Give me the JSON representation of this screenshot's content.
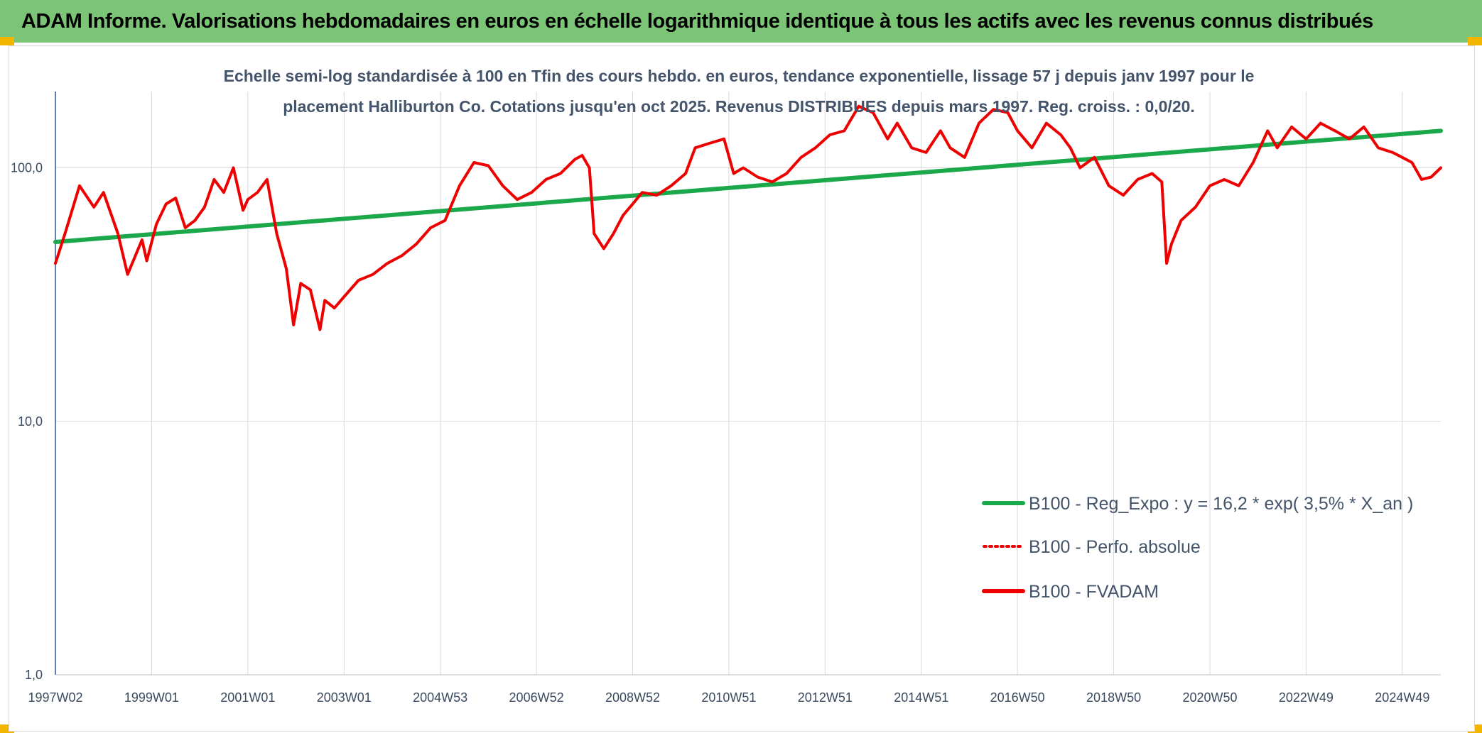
{
  "header": {
    "title": "ADAM Informe. Valorisations hebdomadaires en euros en échelle logarithmique identique à tous les actifs avec les revenus connus distribués"
  },
  "colors": {
    "header_bg": "#7cc576",
    "regression": "#1aa84b",
    "series": "#ee0000",
    "grid": "#d9d9d9",
    "text": "#44546a"
  },
  "chart_data": {
    "type": "line",
    "title_lines": [
      "Echelle semi-log standardisée à 100 en Tfin des cours hebdo. en euros, tendance exponentielle, lissage 57 j depuis janv 1997 pour le",
      "placement Halliburton Co. Cotations jusqu'en oct 2025. Revenus DISTRIBUES depuis mars 1997. Reg. croiss. : 0,0/20."
    ],
    "y_scale": "log",
    "ylim": [
      1,
      200
    ],
    "y_ticks": [
      {
        "value": 1,
        "label": "1,0"
      },
      {
        "value": 10,
        "label": "10,0"
      },
      {
        "value": 100,
        "label": "100,0"
      }
    ],
    "x_range": [
      1997.0,
      2025.8
    ],
    "x_ticks": [
      {
        "value": 1997.0,
        "label": "1997W02"
      },
      {
        "value": 1999.0,
        "label": "1999W01"
      },
      {
        "value": 2001.0,
        "label": "2001W01"
      },
      {
        "value": 2003.0,
        "label": "2003W01"
      },
      {
        "value": 2005.0,
        "label": "2004W53"
      },
      {
        "value": 2007.0,
        "label": "2006W52"
      },
      {
        "value": 2009.0,
        "label": "2008W52"
      },
      {
        "value": 2011.0,
        "label": "2010W51"
      },
      {
        "value": 2013.0,
        "label": "2012W51"
      },
      {
        "value": 2015.0,
        "label": "2014W51"
      },
      {
        "value": 2017.0,
        "label": "2016W50"
      },
      {
        "value": 2019.0,
        "label": "2018W50"
      },
      {
        "value": 2021.0,
        "label": "2020W50"
      },
      {
        "value": 2023.0,
        "label": "2022W49"
      },
      {
        "value": 2025.0,
        "label": "2024W49"
      }
    ],
    "grid": true,
    "legend_position": "bottom-right",
    "series": [
      {
        "name": "B100 - Reg_Expo : y = 16,2 * exp( 3,5% *  X_an )",
        "style": "solid-thick",
        "color": "#1aa84b",
        "x": [
          1997.0,
          2025.8
        ],
        "y": [
          51,
          140
        ]
      },
      {
        "name": "B100 - Perfo. absolue",
        "style": "dotted",
        "color": "#ee0000",
        "x": [],
        "y": []
      },
      {
        "name": "B100 - FVADAM",
        "style": "solid",
        "color": "#ee0000",
        "x": [
          1997.0,
          1997.2,
          1997.5,
          1997.8,
          1998.0,
          1998.3,
          1998.5,
          1998.8,
          1998.9,
          1999.1,
          1999.3,
          1999.5,
          1999.7,
          1999.9,
          2000.1,
          2000.3,
          2000.5,
          2000.7,
          2000.9,
          2001.0,
          2001.2,
          2001.4,
          2001.6,
          2001.8,
          2001.95,
          2002.1,
          2002.3,
          2002.5,
          2002.6,
          2002.8,
          2003.0,
          2003.3,
          2003.6,
          2003.9,
          2004.2,
          2004.5,
          2004.8,
          2005.1,
          2005.4,
          2005.7,
          2006.0,
          2006.3,
          2006.6,
          2006.9,
          2007.2,
          2007.5,
          2007.8,
          2007.95,
          2008.1,
          2008.2,
          2008.4,
          2008.6,
          2008.8,
          2009.0,
          2009.2,
          2009.5,
          2009.8,
          2010.1,
          2010.3,
          2010.6,
          2010.9,
          2011.1,
          2011.3,
          2011.6,
          2011.9,
          2012.2,
          2012.5,
          2012.8,
          2013.1,
          2013.4,
          2013.7,
          2014.0,
          2014.3,
          2014.5,
          2014.8,
          2015.1,
          2015.4,
          2015.6,
          2015.9,
          2016.2,
          2016.5,
          2016.8,
          2017.0,
          2017.3,
          2017.6,
          2017.9,
          2018.1,
          2018.3,
          2018.6,
          2018.9,
          2019.2,
          2019.5,
          2019.8,
          2020.0,
          2020.1,
          2020.2,
          2020.4,
          2020.7,
          2021.0,
          2021.3,
          2021.6,
          2021.9,
          2022.2,
          2022.4,
          2022.7,
          2023.0,
          2023.3,
          2023.6,
          2023.9,
          2024.2,
          2024.5,
          2024.8,
          2025.0,
          2025.2,
          2025.4,
          2025.6,
          2025.8
        ],
        "y": [
          42,
          55,
          85,
          70,
          80,
          55,
          38,
          52,
          43,
          60,
          72,
          76,
          58,
          62,
          70,
          90,
          80,
          100,
          68,
          75,
          80,
          90,
          55,
          40,
          24,
          35,
          33,
          23,
          30,
          28,
          31,
          36,
          38,
          42,
          45,
          50,
          58,
          62,
          85,
          105,
          102,
          85,
          75,
          80,
          90,
          95,
          108,
          112,
          100,
          55,
          48,
          55,
          65,
          72,
          80,
          78,
          85,
          95,
          120,
          125,
          130,
          95,
          100,
          92,
          88,
          95,
          110,
          120,
          135,
          140,
          175,
          165,
          130,
          150,
          120,
          115,
          140,
          120,
          110,
          150,
          170,
          165,
          140,
          120,
          150,
          135,
          120,
          100,
          110,
          85,
          78,
          90,
          95,
          88,
          42,
          50,
          62,
          70,
          85,
          90,
          85,
          105,
          140,
          120,
          145,
          130,
          150,
          140,
          130,
          145,
          120,
          115,
          110,
          105,
          90,
          92,
          100
        ]
      }
    ]
  }
}
